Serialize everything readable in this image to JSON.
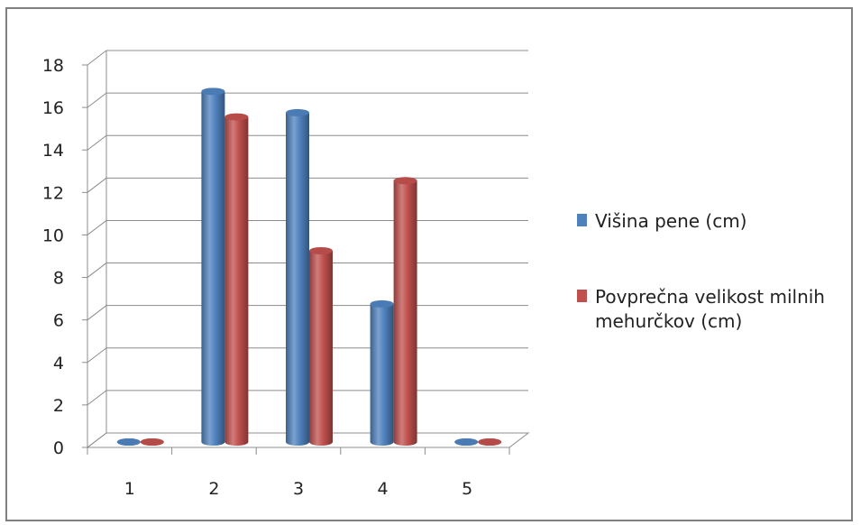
{
  "chart_data": {
    "type": "bar",
    "style": "3d-cylinder",
    "categories": [
      "1",
      "2",
      "3",
      "4",
      "5"
    ],
    "series": [
      {
        "name": "Višina pene (cm)",
        "color": "#4f81bd",
        "values": [
          0,
          16.5,
          15.5,
          6.5,
          0
        ]
      },
      {
        "name": "Povprečna velikost milnih mehurčkov (cm)",
        "color": "#c0504d",
        "values": [
          0,
          15.3,
          9,
          12.3,
          0
        ]
      }
    ],
    "title": "",
    "xlabel": "",
    "ylabel": "",
    "ylim": [
      0,
      18
    ],
    "yticks": [
      0,
      2,
      4,
      6,
      8,
      10,
      12,
      14,
      16,
      18
    ],
    "grid": true,
    "legend_position": "right"
  }
}
